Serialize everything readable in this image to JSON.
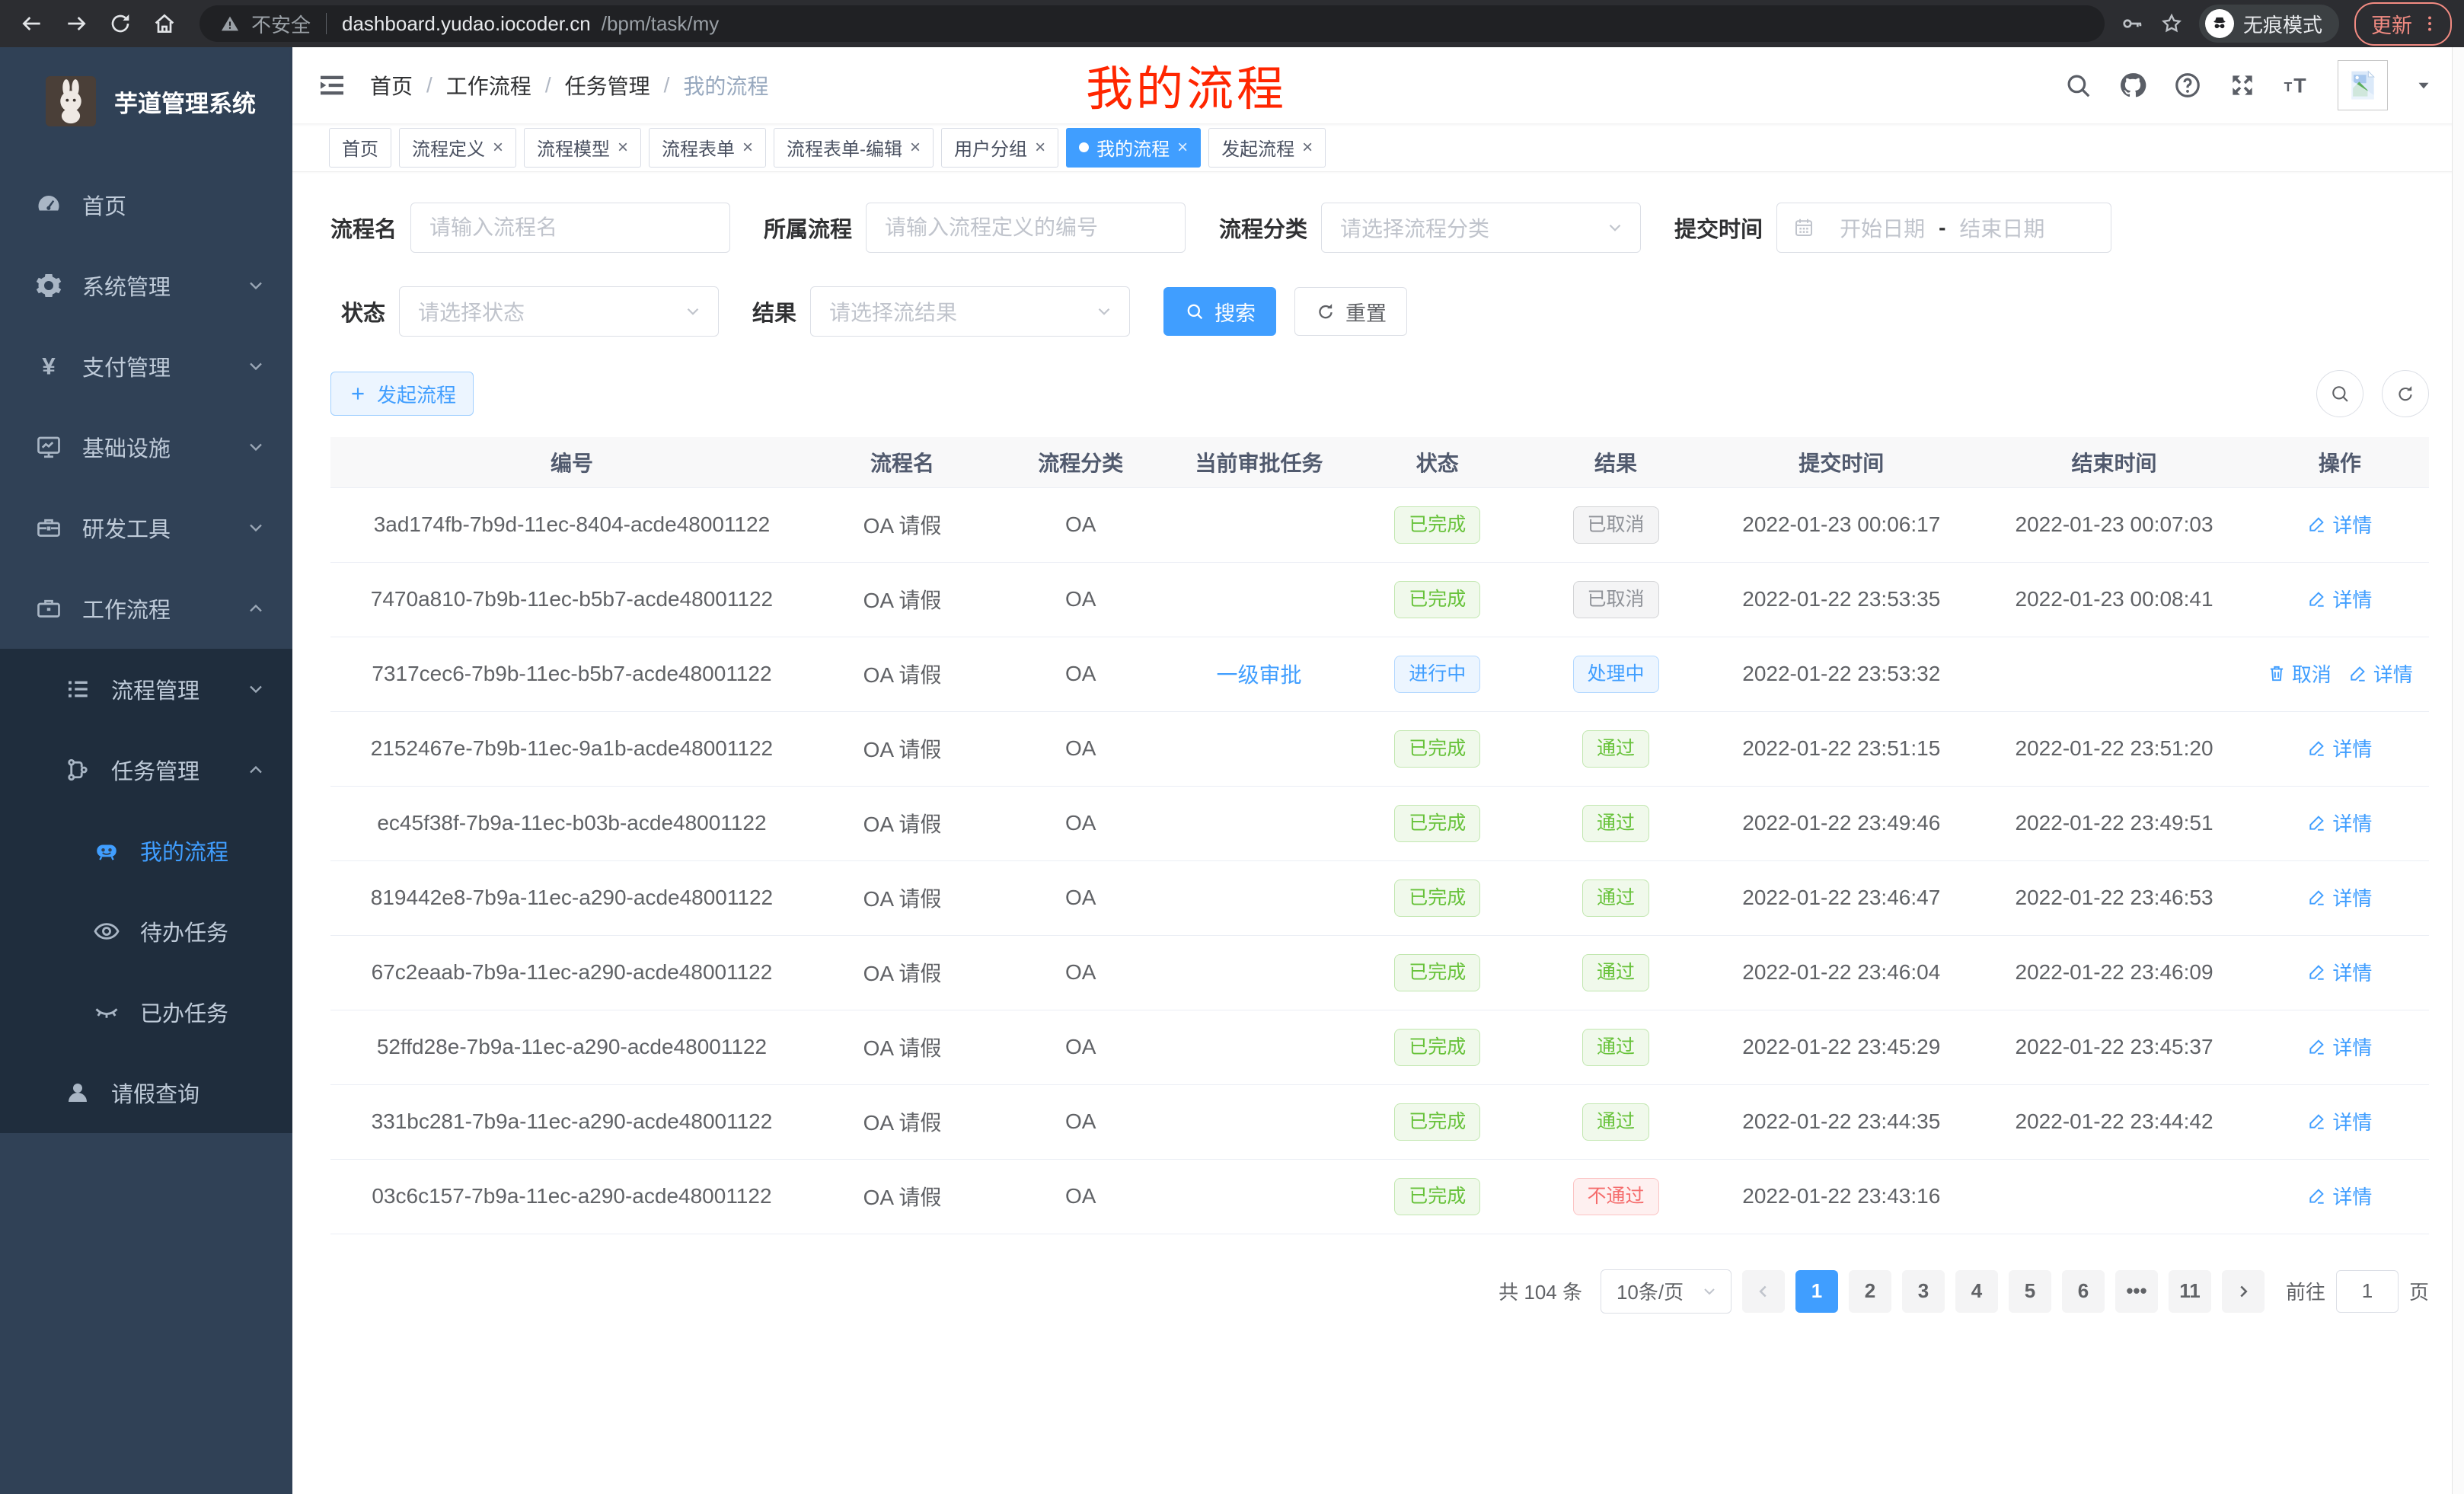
{
  "browser": {
    "security_label": "不安全",
    "url_domain": "dashboard.yudao.iocoder.cn",
    "url_path": "/bpm/task/my",
    "incognito_label": "无痕模式",
    "update_label": "更新"
  },
  "sidebar": {
    "title": "芋道管理系统",
    "menu": [
      {
        "key": "home",
        "label": "首页",
        "icon": "dashboard",
        "level": 1
      },
      {
        "key": "system",
        "label": "系统管理",
        "icon": "gear",
        "level": 1,
        "chevron": "down"
      },
      {
        "key": "payment",
        "label": "支付管理",
        "icon": "yen",
        "level": 1,
        "chevron": "down"
      },
      {
        "key": "infrastructure",
        "label": "基础设施",
        "icon": "monitor",
        "level": 1,
        "chevron": "down"
      },
      {
        "key": "dev-tools",
        "label": "研发工具",
        "icon": "toolbox",
        "level": 1,
        "chevron": "down"
      },
      {
        "key": "workflow",
        "label": "工作流程",
        "icon": "briefcase",
        "level": 1,
        "chevron": "up"
      },
      {
        "key": "process-mgmt",
        "label": "流程管理",
        "icon": "list",
        "level": 2,
        "chevron": "down",
        "sub": true
      },
      {
        "key": "task-mgmt",
        "label": "任务管理",
        "icon": "flow",
        "level": 2,
        "chevron": "up",
        "sub": true
      },
      {
        "key": "my-process",
        "label": "我的流程",
        "icon": "robot",
        "level": 3,
        "active": true,
        "sub": true
      },
      {
        "key": "todo-task",
        "label": "待办任务",
        "icon": "eye",
        "level": 3,
        "sub": true
      },
      {
        "key": "done-task",
        "label": "已办任务",
        "icon": "eye-closed",
        "level": 3,
        "sub": true
      },
      {
        "key": "leave-query",
        "label": "请假查询",
        "icon": "user",
        "level": 2,
        "sub": true
      }
    ]
  },
  "navbar": {
    "breadcrumb": [
      "首页",
      "工作流程",
      "任务管理",
      "我的流程"
    ],
    "annotation": "我的流程"
  },
  "tabs": [
    {
      "label": "首页",
      "closable": false,
      "active": false
    },
    {
      "label": "流程定义",
      "closable": true,
      "active": false
    },
    {
      "label": "流程模型",
      "closable": true,
      "active": false
    },
    {
      "label": "流程表单",
      "closable": true,
      "active": false
    },
    {
      "label": "流程表单-编辑",
      "closable": true,
      "active": false
    },
    {
      "label": "用户分组",
      "closable": true,
      "active": false
    },
    {
      "label": "我的流程",
      "closable": true,
      "active": true
    },
    {
      "label": "发起流程",
      "closable": true,
      "active": false
    }
  ],
  "filters": {
    "process_name": {
      "label": "流程名",
      "placeholder": "请输入流程名"
    },
    "parent_process": {
      "label": "所属流程",
      "placeholder": "请输入流程定义的编号"
    },
    "category": {
      "label": "流程分类",
      "placeholder": "请选择流程分类"
    },
    "submit_time": {
      "label": "提交时间",
      "start": "开始日期",
      "separator": "-",
      "end": "结束日期"
    },
    "status": {
      "label": "状态",
      "placeholder": "请选择状态"
    },
    "result": {
      "label": "结果",
      "placeholder": "请选择流结果"
    },
    "search_label": "搜索",
    "reset_label": "重置"
  },
  "toolbar": {
    "create_label": "发起流程"
  },
  "table": {
    "columns": [
      "编号",
      "流程名",
      "流程分类",
      "当前审批任务",
      "状态",
      "结果",
      "提交时间",
      "结束时间",
      "操作"
    ],
    "rows": [
      {
        "id": "3ad174fb-7b9d-11ec-8404-acde48001122",
        "name": "OA 请假",
        "category": "OA",
        "task": "",
        "status": {
          "text": "已完成",
          "type": "success"
        },
        "result": {
          "text": "已取消",
          "type": "info"
        },
        "submit_time": "2022-01-23 00:06:17",
        "end_time": "2022-01-23 00:07:03",
        "actions": [
          {
            "label": "详情",
            "icon": "edit"
          }
        ]
      },
      {
        "id": "7470a810-7b9b-11ec-b5b7-acde48001122",
        "name": "OA 请假",
        "category": "OA",
        "task": "",
        "status": {
          "text": "已完成",
          "type": "success"
        },
        "result": {
          "text": "已取消",
          "type": "info"
        },
        "submit_time": "2022-01-22 23:53:35",
        "end_time": "2022-01-23 00:08:41",
        "actions": [
          {
            "label": "详情",
            "icon": "edit"
          }
        ]
      },
      {
        "id": "7317cec6-7b9b-11ec-b5b7-acde48001122",
        "name": "OA 请假",
        "category": "OA",
        "task": "一级审批",
        "status": {
          "text": "进行中",
          "type": "primary"
        },
        "result": {
          "text": "处理中",
          "type": "primary"
        },
        "submit_time": "2022-01-22 23:53:32",
        "end_time": "",
        "actions": [
          {
            "label": "取消",
            "icon": "delete"
          },
          {
            "label": "详情",
            "icon": "edit"
          }
        ]
      },
      {
        "id": "2152467e-7b9b-11ec-9a1b-acde48001122",
        "name": "OA 请假",
        "category": "OA",
        "task": "",
        "status": {
          "text": "已完成",
          "type": "success"
        },
        "result": {
          "text": "通过",
          "type": "success"
        },
        "submit_time": "2022-01-22 23:51:15",
        "end_time": "2022-01-22 23:51:20",
        "actions": [
          {
            "label": "详情",
            "icon": "edit"
          }
        ]
      },
      {
        "id": "ec45f38f-7b9a-11ec-b03b-acde48001122",
        "name": "OA 请假",
        "category": "OA",
        "task": "",
        "status": {
          "text": "已完成",
          "type": "success"
        },
        "result": {
          "text": "通过",
          "type": "success"
        },
        "submit_time": "2022-01-22 23:49:46",
        "end_time": "2022-01-22 23:49:51",
        "actions": [
          {
            "label": "详情",
            "icon": "edit"
          }
        ]
      },
      {
        "id": "819442e8-7b9a-11ec-a290-acde48001122",
        "name": "OA 请假",
        "category": "OA",
        "task": "",
        "status": {
          "text": "已完成",
          "type": "success"
        },
        "result": {
          "text": "通过",
          "type": "success"
        },
        "submit_time": "2022-01-22 23:46:47",
        "end_time": "2022-01-22 23:46:53",
        "actions": [
          {
            "label": "详情",
            "icon": "edit"
          }
        ]
      },
      {
        "id": "67c2eaab-7b9a-11ec-a290-acde48001122",
        "name": "OA 请假",
        "category": "OA",
        "task": "",
        "status": {
          "text": "已完成",
          "type": "success"
        },
        "result": {
          "text": "通过",
          "type": "success"
        },
        "submit_time": "2022-01-22 23:46:04",
        "end_time": "2022-01-22 23:46:09",
        "actions": [
          {
            "label": "详情",
            "icon": "edit"
          }
        ]
      },
      {
        "id": "52ffd28e-7b9a-11ec-a290-acde48001122",
        "name": "OA 请假",
        "category": "OA",
        "task": "",
        "status": {
          "text": "已完成",
          "type": "success"
        },
        "result": {
          "text": "通过",
          "type": "success"
        },
        "submit_time": "2022-01-22 23:45:29",
        "end_time": "2022-01-22 23:45:37",
        "actions": [
          {
            "label": "详情",
            "icon": "edit"
          }
        ]
      },
      {
        "id": "331bc281-7b9a-11ec-a290-acde48001122",
        "name": "OA 请假",
        "category": "OA",
        "task": "",
        "status": {
          "text": "已完成",
          "type": "success"
        },
        "result": {
          "text": "通过",
          "type": "success"
        },
        "submit_time": "2022-01-22 23:44:35",
        "end_time": "2022-01-22 23:44:42",
        "actions": [
          {
            "label": "详情",
            "icon": "edit"
          }
        ]
      },
      {
        "id": "03c6c157-7b9a-11ec-a290-acde48001122",
        "name": "OA 请假",
        "category": "OA",
        "task": "",
        "status": {
          "text": "已完成",
          "type": "success"
        },
        "result": {
          "text": "不通过",
          "type": "danger"
        },
        "submit_time": "2022-01-22 23:43:16",
        "end_time": "",
        "actions": [
          {
            "label": "详情",
            "icon": "edit"
          }
        ]
      }
    ]
  },
  "pagination": {
    "total": "共 104 条",
    "page_size": "10条/页",
    "pages": [
      {
        "label": "1",
        "active": true
      },
      {
        "label": "2",
        "active": false
      },
      {
        "label": "3",
        "active": false
      },
      {
        "label": "4",
        "active": false
      },
      {
        "label": "5",
        "active": false
      },
      {
        "label": "6",
        "active": false
      },
      {
        "label": "•••",
        "active": false,
        "more": true
      },
      {
        "label": "11",
        "active": false
      }
    ],
    "goto_label": "前往",
    "goto_value": "1",
    "goto_suffix": "页"
  }
}
